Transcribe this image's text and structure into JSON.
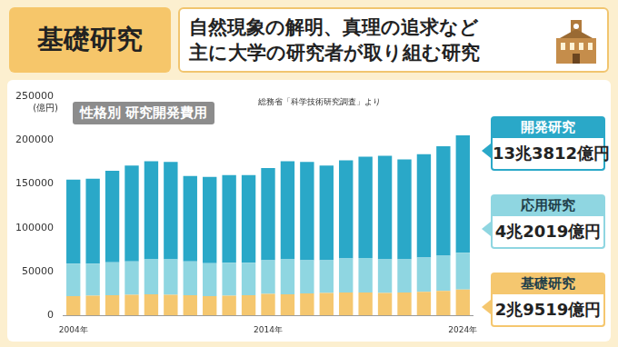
{
  "header": {
    "badge": "基礎研究",
    "description": [
      "自然現象の解明、真理の追求など",
      "主に大学の研究者が取り組む研究"
    ]
  },
  "chart_data": {
    "type": "bar",
    "title": "性格別 研究開発費用",
    "source": "総務省「科学技術研究調査」より",
    "y_label": "(億円)",
    "categories": [
      "2004年",
      null,
      null,
      null,
      null,
      null,
      null,
      null,
      null,
      null,
      "2014年",
      null,
      null,
      null,
      null,
      null,
      null,
      null,
      null,
      null,
      "2024年"
    ],
    "series": [
      {
        "name": "基礎研究",
        "color": "#f5c76f",
        "values": [
          22000,
          22500,
          23000,
          23500,
          24000,
          23500,
          23000,
          22000,
          22500,
          23000,
          24500,
          24000,
          25000,
          25500,
          26000,
          26000,
          25500,
          26000,
          27000,
          28000,
          29519
        ]
      },
      {
        "name": "応用研究",
        "color": "#8fd6e1",
        "values": [
          37000,
          36500,
          37500,
          38000,
          40000,
          40500,
          38500,
          37500,
          37500,
          37000,
          38500,
          40000,
          38000,
          37500,
          39000,
          39500,
          38500,
          38000,
          39000,
          40000,
          42019
        ]
      },
      {
        "name": "開発研究",
        "color": "#2aa8c8",
        "values": [
          96000,
          97000,
          104500,
          109500,
          112000,
          111000,
          97500,
          98500,
          100000,
          100000,
          105000,
          112000,
          112000,
          108000,
          112000,
          115500,
          118000,
          114000,
          118000,
          125000,
          133812
        ]
      }
    ],
    "annotations": [
      {
        "series": "開発研究",
        "text": "13兆3812億円"
      },
      {
        "series": "応用研究",
        "text": "4兆2019億円"
      },
      {
        "series": "基礎研究",
        "text": "2兆9519億円"
      }
    ],
    "ylim": [
      0,
      250000
    ],
    "yticks": [
      0,
      50000,
      100000,
      150000,
      200000,
      250000
    ],
    "stacked": true,
    "grid": false
  }
}
